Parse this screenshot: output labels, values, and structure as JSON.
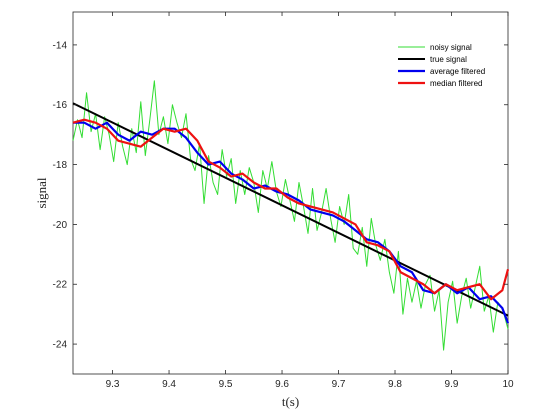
{
  "chart_data": {
    "type": "line",
    "title": "",
    "xlabel": "t(s)",
    "ylabel": "signal",
    "xlim": [
      9.23,
      10.0
    ],
    "ylim": [
      -25,
      -12.9
    ],
    "xticks": [
      9.3,
      9.4,
      9.5,
      9.6,
      9.7,
      9.8,
      9.9,
      10
    ],
    "xtick_labels": [
      "9.3",
      "9.4",
      "9.5",
      "9.6",
      "9.7",
      "9.8",
      "9.9",
      "10"
    ],
    "yticks": [
      -24,
      -22,
      -20,
      -18,
      -16,
      -14
    ],
    "ytick_labels": [
      "-24",
      "-22",
      "-20",
      "-18",
      "-16",
      "-14"
    ],
    "grid": false,
    "legend_position": "top-right",
    "series": [
      {
        "name": "noisy signal",
        "color": "#33dd33",
        "x": [
          9.23,
          9.238,
          9.246,
          9.254,
          9.262,
          9.27,
          9.278,
          9.286,
          9.294,
          9.302,
          9.31,
          9.318,
          9.326,
          9.334,
          9.342,
          9.35,
          9.358,
          9.366,
          9.374,
          9.382,
          9.39,
          9.398,
          9.406,
          9.414,
          9.422,
          9.43,
          9.438,
          9.446,
          9.454,
          9.462,
          9.47,
          9.478,
          9.486,
          9.494,
          9.502,
          9.51,
          9.518,
          9.526,
          9.534,
          9.542,
          9.55,
          9.558,
          9.566,
          9.574,
          9.582,
          9.59,
          9.598,
          9.606,
          9.614,
          9.622,
          9.63,
          9.638,
          9.646,
          9.654,
          9.662,
          9.67,
          9.678,
          9.686,
          9.694,
          9.702,
          9.71,
          9.718,
          9.726,
          9.734,
          9.742,
          9.75,
          9.758,
          9.766,
          9.774,
          9.782,
          9.79,
          9.798,
          9.806,
          9.814,
          9.822,
          9.83,
          9.838,
          9.846,
          9.854,
          9.862,
          9.87,
          9.878,
          9.886,
          9.894,
          9.902,
          9.91,
          9.918,
          9.926,
          9.934,
          9.942,
          9.95,
          9.958,
          9.966,
          9.974,
          9.982,
          9.99,
          10.0
        ],
        "y": [
          -17.2,
          -16.5,
          -17.1,
          -15.6,
          -16.9,
          -16.3,
          -17.5,
          -16.4,
          -17.0,
          -17.9,
          -16.6,
          -17.4,
          -18.0,
          -16.8,
          -17.6,
          -15.9,
          -17.7,
          -16.5,
          -15.2,
          -17.0,
          -16.4,
          -17.3,
          -16.0,
          -16.6,
          -17.1,
          -16.3,
          -17.8,
          -18.2,
          -17.3,
          -19.3,
          -17.7,
          -18.6,
          -19.0,
          -17.5,
          -18.4,
          -17.8,
          -19.3,
          -18.2,
          -19.0,
          -18.1,
          -18.6,
          -19.6,
          -18.2,
          -18.8,
          -17.9,
          -18.9,
          -19.4,
          -18.5,
          -19.2,
          -19.9,
          -18.6,
          -19.4,
          -20.3,
          -18.8,
          -20.2,
          -19.6,
          -18.8,
          -19.8,
          -20.6,
          -19.4,
          -20.0,
          -19.0,
          -20.8,
          -21.0,
          -20.1,
          -21.4,
          -19.8,
          -20.7,
          -21.2,
          -20.5,
          -21.6,
          -22.3,
          -20.9,
          -23.0,
          -21.8,
          -22.6,
          -21.9,
          -22.8,
          -22.0,
          -21.7,
          -22.9,
          -22.2,
          -24.2,
          -22.6,
          -21.9,
          -23.3,
          -22.4,
          -21.8,
          -22.8,
          -22.1,
          -21.4,
          -22.9,
          -22.4,
          -23.6,
          -22.6,
          -22.8,
          -23.5
        ]
      },
      {
        "name": "true signal",
        "color": "#000000",
        "x": [
          9.23,
          10.0
        ],
        "y": [
          -15.95,
          -23.05
        ]
      },
      {
        "name": "average filtered",
        "color": "#0000ee",
        "x": [
          9.23,
          9.25,
          9.27,
          9.29,
          9.31,
          9.33,
          9.35,
          9.37,
          9.39,
          9.41,
          9.43,
          9.45,
          9.47,
          9.49,
          9.51,
          9.53,
          9.55,
          9.57,
          9.59,
          9.61,
          9.63,
          9.65,
          9.67,
          9.69,
          9.71,
          9.73,
          9.75,
          9.77,
          9.79,
          9.81,
          9.83,
          9.85,
          9.87,
          9.89,
          9.91,
          9.93,
          9.95,
          9.97,
          9.99,
          10.0
        ],
        "y": [
          -16.6,
          -16.6,
          -16.8,
          -16.6,
          -17.0,
          -17.2,
          -16.9,
          -17.0,
          -16.8,
          -16.8,
          -17.1,
          -17.6,
          -18.0,
          -17.9,
          -18.3,
          -18.5,
          -18.8,
          -18.7,
          -18.9,
          -19.0,
          -19.2,
          -19.5,
          -19.6,
          -19.7,
          -19.9,
          -20.2,
          -20.5,
          -20.6,
          -20.9,
          -21.4,
          -21.6,
          -22.2,
          -22.3,
          -22.0,
          -22.3,
          -22.1,
          -22.5,
          -22.4,
          -22.8,
          -23.3
        ]
      },
      {
        "name": "median filtered",
        "color": "#ee1111",
        "x": [
          9.23,
          9.25,
          9.27,
          9.29,
          9.31,
          9.33,
          9.35,
          9.37,
          9.39,
          9.41,
          9.43,
          9.45,
          9.47,
          9.49,
          9.51,
          9.53,
          9.55,
          9.57,
          9.59,
          9.61,
          9.63,
          9.65,
          9.67,
          9.69,
          9.71,
          9.73,
          9.75,
          9.77,
          9.79,
          9.81,
          9.83,
          9.85,
          9.87,
          9.89,
          9.91,
          9.93,
          9.95,
          9.97,
          9.99,
          10.0
        ],
        "y": [
          -16.6,
          -16.5,
          -16.6,
          -16.8,
          -17.2,
          -17.3,
          -17.4,
          -17.1,
          -16.8,
          -16.9,
          -16.8,
          -17.2,
          -17.9,
          -18.1,
          -18.4,
          -18.3,
          -18.6,
          -18.8,
          -18.8,
          -19.1,
          -19.3,
          -19.4,
          -19.5,
          -19.6,
          -19.8,
          -20.0,
          -20.6,
          -20.7,
          -20.9,
          -21.6,
          -21.8,
          -22.0,
          -22.3,
          -22.0,
          -22.2,
          -22.1,
          -22.0,
          -22.5,
          -22.2,
          -21.5
        ]
      }
    ]
  }
}
